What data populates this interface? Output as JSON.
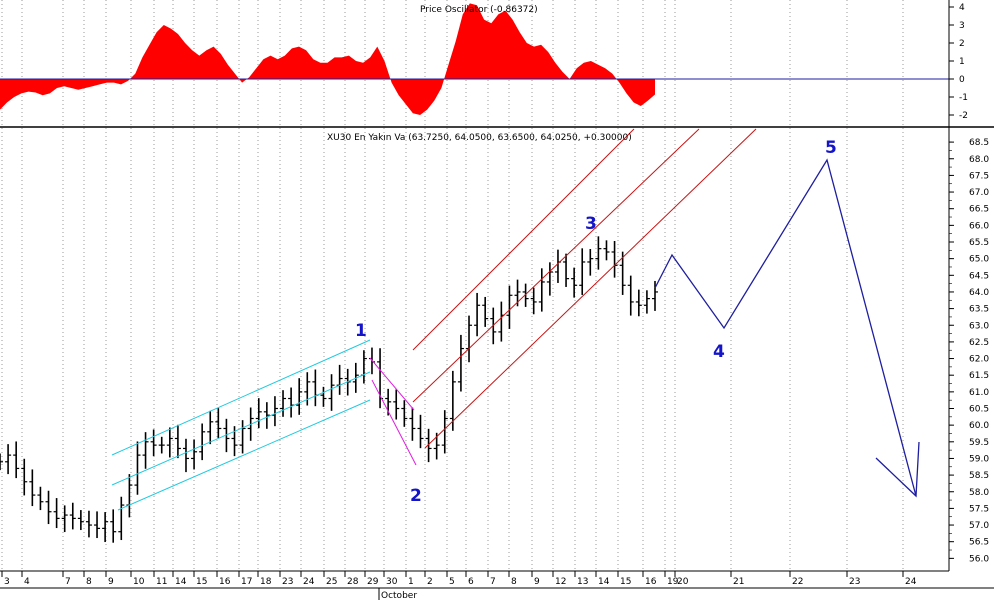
{
  "chart_data": [
    {
      "type": "area",
      "title": "Price Oscillator (-0.86372)",
      "ylim": [
        -2.2,
        4.6
      ],
      "yticks": [
        "4",
        "3",
        "2",
        "1",
        "0",
        "-1",
        "-2"
      ],
      "fill_color": "#ff0000",
      "baseline_color": "#1e1ea0",
      "values": [
        -1.7,
        -1.3,
        -1.0,
        -0.8,
        -0.7,
        -0.75,
        -0.9,
        -0.8,
        -0.5,
        -0.4,
        -0.5,
        -0.6,
        -0.5,
        -0.4,
        -0.3,
        -0.2,
        -0.2,
        -0.3,
        -0.1,
        0.3,
        1.2,
        1.9,
        2.6,
        3.0,
        2.8,
        2.5,
        2.0,
        1.6,
        1.3,
        1.6,
        1.8,
        1.4,
        0.8,
        0.3,
        -0.2,
        0.1,
        0.6,
        1.1,
        1.3,
        1.1,
        1.3,
        1.7,
        1.8,
        1.6,
        1.1,
        0.9,
        0.9,
        1.2,
        1.2,
        1.3,
        1.0,
        0.9,
        1.2,
        1.8,
        1.0,
        -0.2,
        -0.9,
        -1.4,
        -1.9,
        -2.0,
        -1.7,
        -1.2,
        -0.5,
        0.8,
        2.1,
        3.6,
        4.2,
        4.1,
        3.3,
        3.1,
        3.6,
        3.8,
        3.3,
        2.6,
        2.0,
        1.8,
        1.9,
        1.5,
        0.9,
        0.4,
        0.0,
        0.6,
        0.9,
        1.0,
        0.8,
        0.6,
        0.3,
        -0.2,
        -0.8,
        -1.3,
        -1.5,
        -1.2,
        -0.86
      ]
    },
    {
      "type": "line",
      "title": "XU30 En Yakın Va (63.7250, 64.0500, 63.6500, 64.0250, +0.30000)",
      "ylim": [
        55.5,
        69.0
      ],
      "yticks": [
        "68.5",
        "68.0",
        "67.5",
        "67.0",
        "66.5",
        "66.0",
        "65.5",
        "65.0",
        "64.5",
        "64.0",
        "63.5",
        "63.0",
        "62.5",
        "62.0",
        "61.5",
        "61.0",
        "60.5",
        "60.0",
        "59.5",
        "59.0",
        "58.5",
        "58.0",
        "57.5",
        "57.0",
        "56.5",
        "56.0"
      ],
      "x_labels": [
        "3",
        "4",
        "7",
        "8",
        "9",
        "10",
        "11",
        "14",
        "15",
        "16",
        "17",
        "18",
        "23",
        "24",
        "25",
        "28",
        "29",
        "30",
        "1",
        "2",
        "5",
        "6",
        "7",
        "8",
        "9",
        "12",
        "13",
        "14",
        "15",
        "16",
        "19",
        "20",
        "21",
        "22",
        "23",
        "24"
      ],
      "month_labels": [
        "October"
      ],
      "price_close": [
        58.9,
        59.1,
        58.7,
        58.3,
        57.9,
        57.7,
        57.4,
        57.2,
        57.3,
        57.2,
        57.1,
        57.0,
        56.9,
        57.1,
        56.8,
        57.6,
        58.2,
        59.1,
        59.5,
        59.4,
        59.4,
        59.6,
        59.3,
        59.0,
        59.2,
        59.8,
        60.1,
        59.9,
        59.6,
        59.4,
        59.9,
        60.2,
        60.4,
        60.3,
        60.5,
        60.8,
        60.6,
        61.0,
        61.3,
        60.9,
        60.8,
        61.2,
        61.4,
        61.3,
        61.5,
        62.0,
        61.9,
        60.8,
        60.7,
        60.5,
        60.2,
        59.9,
        59.6,
        59.3,
        59.4,
        60.2,
        61.3,
        62.3,
        63.0,
        63.6,
        63.2,
        62.8,
        63.3,
        63.9,
        64.0,
        63.8,
        63.7,
        64.3,
        64.6,
        64.9,
        64.4,
        64.2,
        64.9,
        65.0,
        65.3,
        65.2,
        64.8,
        64.2,
        63.7,
        63.6,
        63.8,
        64.0
      ],
      "projection": [
        [
          64.0,
          0
        ],
        [
          65.2,
          1
        ],
        [
          62.9,
          2
        ],
        [
          68.0,
          3
        ],
        [
          57.8,
          4
        ],
        [
          59.5,
          5
        ]
      ],
      "projection_color": "#1e1ea0",
      "channels": [
        {
          "color": "#1ecbe1",
          "name": "wave-1"
        },
        {
          "color": "#e11ee1",
          "name": "wave-2"
        },
        {
          "color": "#c81414",
          "name": "wave-3"
        }
      ],
      "wave_labels": [
        "1",
        "2",
        "3",
        "4",
        "5"
      ]
    }
  ]
}
